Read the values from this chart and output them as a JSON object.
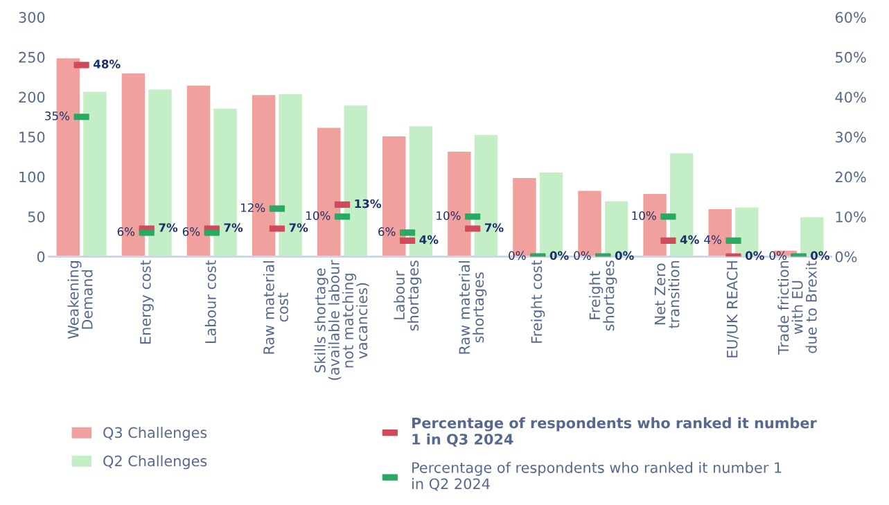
{
  "chart_data": {
    "type": "bar",
    "categories": [
      "Weakening\nDemand",
      "Energy cost",
      "Labour cost",
      "Raw material\ncost",
      "Skills shortage\n(available labour\nnot matching\nvacancies)",
      "Labour\nshortages",
      "Raw material\nshortages",
      "Freight cost",
      "Freight\nshortages",
      "Net Zero\ntransition",
      "EU/UK REACH",
      "Trade friction\nwith EU\ndue to Brexit"
    ],
    "series": [
      {
        "name": "Q3 Challenges",
        "color": "#f0a19d",
        "values": [
          249,
          230,
          215,
          203,
          162,
          151,
          132,
          99,
          83,
          79,
          60,
          8
        ]
      },
      {
        "name": "Q2 Challenges",
        "color": "#c4eec6",
        "values": [
          207,
          210,
          186,
          204,
          190,
          164,
          153,
          106,
          70,
          130,
          62,
          50
        ]
      },
      {
        "name": "Percentage of respondents who ranked it number\n1 in Q3 2024",
        "type": "scatter",
        "axis": "y2",
        "color": "#d04a5c",
        "values": [
          48,
          7,
          7,
          7,
          13,
          4,
          7,
          0,
          0,
          4,
          0,
          0
        ],
        "value_labels": [
          "48%",
          "7%",
          "7%",
          "7%",
          "13%",
          "4%",
          "7%",
          "0%",
          "0%",
          "4%",
          "0%",
          "0%"
        ]
      },
      {
        "name": "Percentage of respondents who ranked it number 1\nin Q2 2024",
        "type": "scatter",
        "axis": "y2",
        "color": "#2ba862",
        "values": [
          35,
          6,
          6,
          12,
          10,
          6,
          10,
          0,
          0,
          10,
          4,
          0
        ],
        "value_labels": [
          "35%",
          "6%",
          "6%",
          "12%",
          "10%",
          "6%",
          "10%",
          "0%",
          "0%",
          "10%",
          "4%",
          "0%"
        ]
      }
    ],
    "ylim": [
      0,
      300
    ],
    "yticks": [
      0,
      50,
      100,
      150,
      200,
      250,
      300
    ],
    "y2lim": [
      0,
      60
    ],
    "y2ticks": [
      {
        "value": 0,
        "label": "0%"
      },
      {
        "value": 10,
        "label": "10%"
      },
      {
        "value": 20,
        "label": "20%"
      },
      {
        "value": 30,
        "label": "30%"
      },
      {
        "value": 40,
        "label": "40%"
      },
      {
        "value": 50,
        "label": "50%"
      },
      {
        "value": 60,
        "label": "60%"
      }
    ],
    "marker": "square",
    "grid": false,
    "legend": "bottom"
  }
}
